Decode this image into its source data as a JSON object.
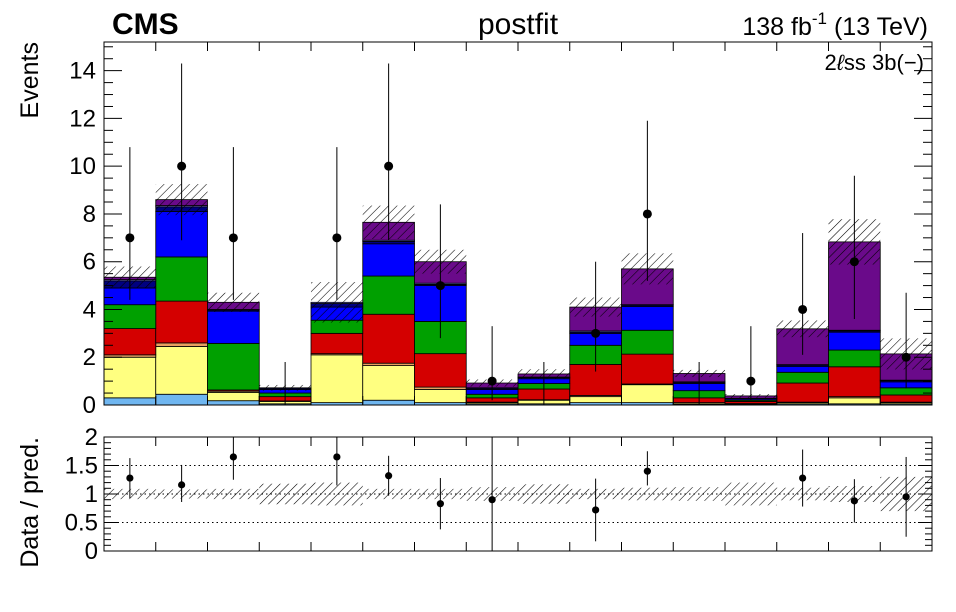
{
  "header": {
    "experiment": "CMS",
    "fit_label": "postfit",
    "lumi_prefix": "138 fb",
    "lumi_exp": "-1",
    "lumi_suffix": " (13 TeV)",
    "region_prefix": "2",
    "region_lepton": "ℓ",
    "region_suffix": "ss 3b(−)"
  },
  "chart_data": [
    {
      "type": "bar",
      "stacked": true,
      "ylabel": "Events",
      "ylim": [
        0,
        15.2
      ],
      "yticks": [
        "0",
        "2",
        "4",
        "6",
        "8",
        "10",
        "12",
        "14"
      ],
      "ytick_values": [
        0,
        2,
        4,
        6,
        8,
        10,
        12,
        14
      ],
      "nbins": 16,
      "series": [
        {
          "color": "#6fb6f0",
          "values": [
            0.3,
            0.45,
            0.18,
            0.05,
            0.1,
            0.2,
            0.1,
            0.05,
            0.05,
            0.1,
            0.1,
            0.03,
            0.02,
            0.05,
            0.05,
            0.05
          ]
        },
        {
          "color": "#ffff80",
          "values": [
            1.7,
            2.0,
            0.35,
            0.1,
            2.0,
            1.45,
            0.55,
            0.05,
            0.15,
            0.25,
            0.75,
            0.05,
            0.03,
            0.05,
            0.25,
            0.05
          ]
        },
        {
          "color": "#e8a060",
          "values": [
            0.1,
            0.15,
            0.05,
            0.02,
            0.05,
            0.1,
            0.1,
            0.02,
            0.02,
            0.05,
            0.03,
            0.02,
            0.01,
            0.02,
            0.05,
            0.02
          ]
        },
        {
          "color": "#d40000",
          "values": [
            1.1,
            1.75,
            0.05,
            0.18,
            0.85,
            2.05,
            1.4,
            0.18,
            0.45,
            1.3,
            1.25,
            0.2,
            0.09,
            0.8,
            1.25,
            0.3
          ]
        },
        {
          "color": "#00a000",
          "values": [
            1.0,
            1.85,
            1.95,
            0.15,
            0.55,
            1.6,
            1.35,
            0.15,
            0.23,
            0.8,
            1.0,
            0.3,
            0.05,
            0.45,
            0.7,
            0.3
          ]
        },
        {
          "color": "#0000ff",
          "values": [
            0.7,
            1.9,
            1.35,
            0.15,
            0.55,
            1.35,
            1.5,
            0.2,
            0.2,
            0.5,
            1.0,
            0.3,
            0.05,
            0.25,
            0.75,
            0.25
          ]
        },
        {
          "color": "#000080",
          "values": [
            0.3,
            0.2,
            0.05,
            0.05,
            0.15,
            0.1,
            0.05,
            0.05,
            0.05,
            0.05,
            0.05,
            0.05,
            0.02,
            0.05,
            0.05,
            0.05
          ]
        },
        {
          "color": "#8a8aff",
          "values": [
            0.05,
            0.05,
            0.02,
            0.02,
            0.05,
            0.05,
            0.05,
            0.02,
            0.02,
            0.05,
            0.02,
            0.02,
            0.01,
            0.02,
            0.03,
            0.02
          ]
        },
        {
          "color": "#6a0a8a",
          "values": [
            0.1,
            0.25,
            0.3,
            0.0,
            0.0,
            0.75,
            0.9,
            0.2,
            0.13,
            1.0,
            1.5,
            0.35,
            0.1,
            1.5,
            3.7,
            1.1
          ]
        }
      ],
      "uncertainty_halfwidth": [
        0.45,
        0.65,
        0.4,
        0.12,
        0.85,
        0.7,
        0.5,
        0.15,
        0.2,
        0.4,
        0.65,
        0.15,
        0.08,
        0.35,
        0.95,
        0.65
      ],
      "data": {
        "values": [
          7,
          10,
          7,
          0,
          7,
          10,
          5,
          1,
          0,
          3,
          8,
          0,
          1,
          4,
          6,
          2
        ],
        "err_low": [
          2.6,
          3.1,
          2.6,
          0,
          2.6,
          3.1,
          2.2,
          0.8,
          0,
          1.6,
          2.8,
          0,
          0.8,
          1.9,
          2.4,
          1.3
        ],
        "err_high": [
          3.8,
          4.3,
          3.8,
          1.8,
          3.8,
          4.3,
          3.4,
          2.3,
          1.8,
          3.0,
          3.9,
          1.8,
          2.3,
          3.2,
          3.6,
          2.7
        ]
      }
    },
    {
      "type": "scatter",
      "ylabel": "Data / pred.",
      "ylim": [
        0,
        2
      ],
      "yticks": [
        "0",
        "0.5",
        "1",
        "1.5",
        "2"
      ],
      "ytick_values": [
        0,
        0.5,
        1,
        1.5,
        2
      ],
      "gridlines": [
        0.5,
        1,
        1.5
      ],
      "points": [
        {
          "bin": 1,
          "value": 1.28,
          "err_low": 0.35,
          "err_high": 0.35
        },
        {
          "bin": 2,
          "value": 1.16,
          "err_low": 0.3,
          "err_high": 0.35
        },
        {
          "bin": 3,
          "value": 1.65,
          "err_low": 0.4,
          "err_high": 0.45
        },
        {
          "bin": 5,
          "value": 1.65,
          "err_low": 0.5,
          "err_high": 0.45
        },
        {
          "bin": 6,
          "value": 1.32,
          "err_low": 0.35,
          "err_high": 0.35
        },
        {
          "bin": 7,
          "value": 0.83,
          "err_low": 0.45,
          "err_high": 0.45
        },
        {
          "bin": 8,
          "value": 0.9,
          "err_low": 0.9,
          "err_high": 1.15
        },
        {
          "bin": 10,
          "value": 0.72,
          "err_low": 0.55,
          "err_high": 0.55
        },
        {
          "bin": 11,
          "value": 1.4,
          "err_low": 0.25,
          "err_high": 0.35
        },
        {
          "bin": 14,
          "value": 1.28,
          "err_low": 0.5,
          "err_high": 0.5
        },
        {
          "bin": 15,
          "value": 0.88,
          "err_low": 0.38,
          "err_high": 0.38
        },
        {
          "bin": 16,
          "value": 0.95,
          "err_low": 0.7,
          "err_high": 0.7
        }
      ],
      "uncertainty_halfwidth": [
        0.09,
        0.08,
        0.09,
        0.18,
        0.2,
        0.09,
        0.09,
        0.12,
        0.17,
        0.09,
        0.11,
        0.12,
        0.2,
        0.11,
        0.14,
        0.3
      ]
    }
  ]
}
